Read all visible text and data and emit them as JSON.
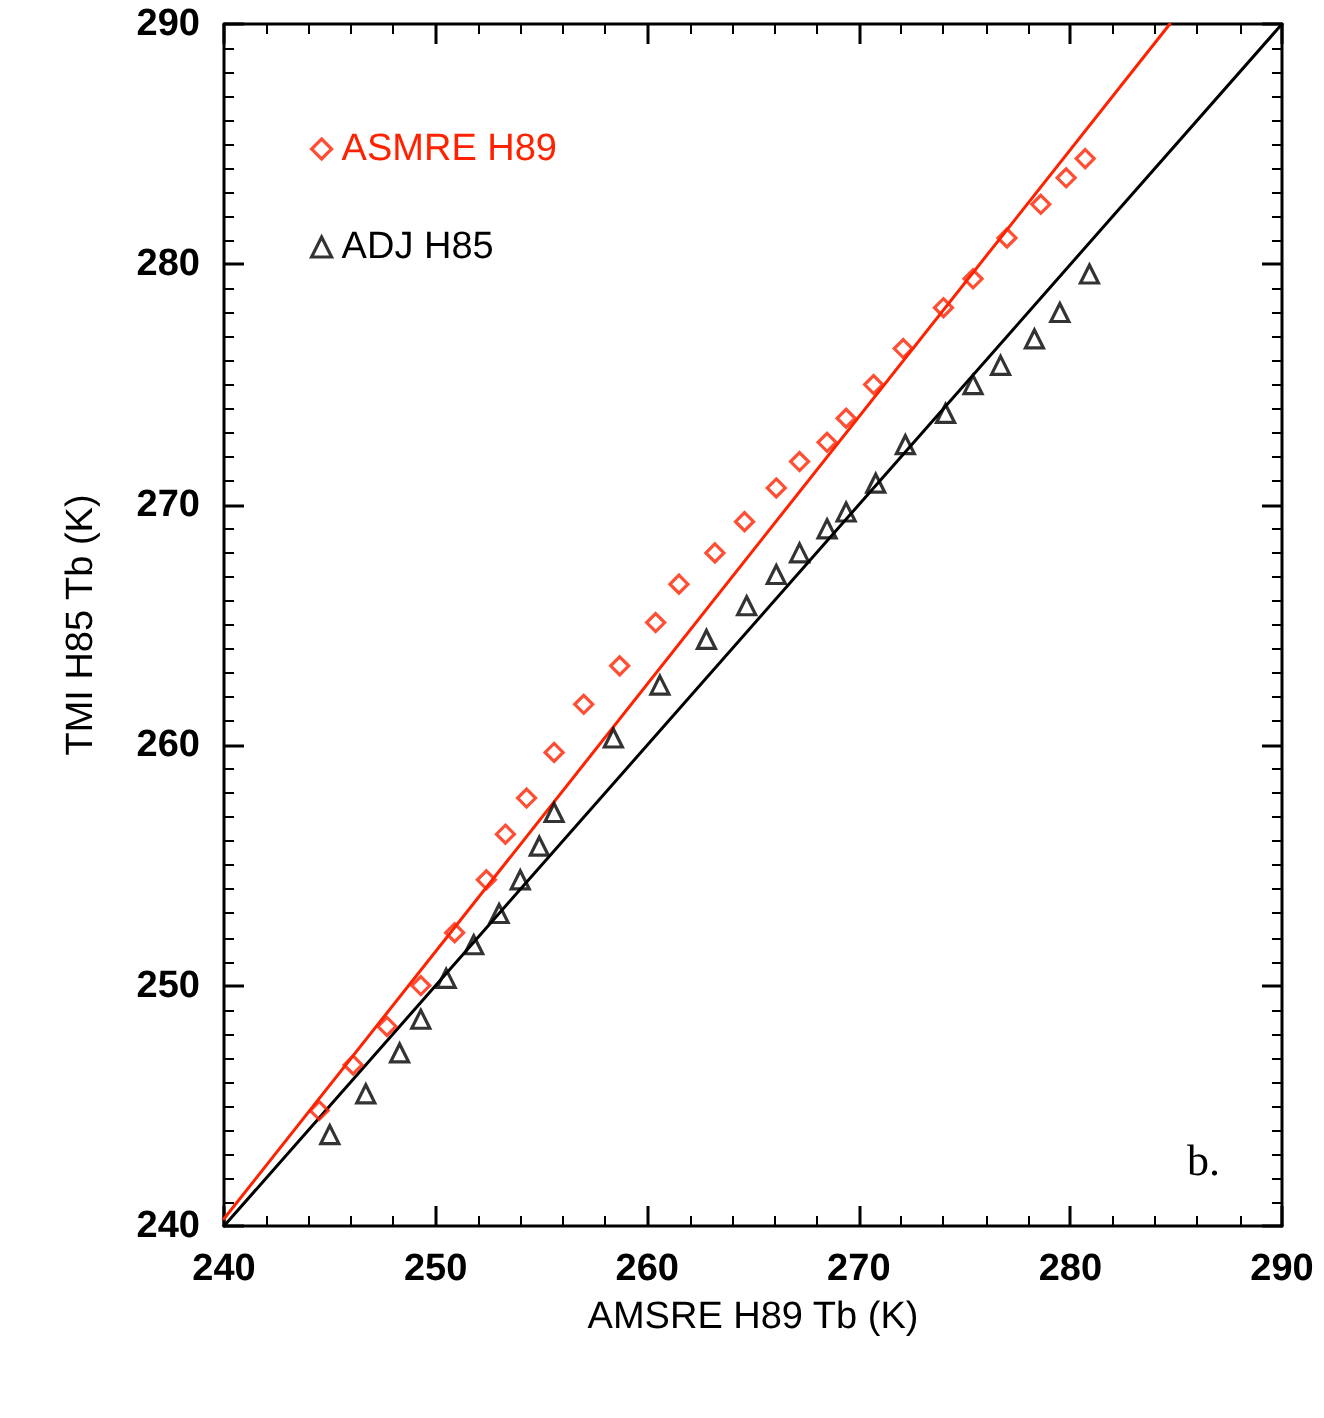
{
  "chart_data": {
    "type": "scatter",
    "xlabel": "AMSRE H89 Tb (K)",
    "ylabel": "TMI H85 Tb (K)",
    "xlim": [
      240,
      290
    ],
    "ylim": [
      240,
      290
    ],
    "xticks": [
      240,
      250,
      260,
      270,
      280,
      290
    ],
    "yticks": [
      240,
      250,
      260,
      270,
      280,
      290
    ],
    "grid": false,
    "legend": "top left",
    "annotations": [
      "b."
    ],
    "series": [
      {
        "name": "ASMRE H89",
        "color": "#ff2200",
        "marker": "diamond",
        "x": [
          244.5,
          246.1,
          247.7,
          249.3,
          250.9,
          252.4,
          253.3,
          254.3,
          255.6,
          257.0,
          258.7,
          260.4,
          261.5,
          263.2,
          264.6,
          266.1,
          267.2,
          268.5,
          269.4,
          270.7,
          272.1,
          274.0,
          275.4,
          277.0,
          278.6,
          279.8,
          280.7
        ],
        "values": [
          244.8,
          246.7,
          248.3,
          250.0,
          252.2,
          254.4,
          256.3,
          257.8,
          259.7,
          261.7,
          263.3,
          265.1,
          266.7,
          268.0,
          269.3,
          270.7,
          271.8,
          272.6,
          273.6,
          275.0,
          276.5,
          278.2,
          279.4,
          281.1,
          282.5,
          283.6,
          284.4
        ]
      },
      {
        "name": "ADJ H85",
        "color": "#000000",
        "marker": "triangle",
        "x": [
          245.0,
          246.7,
          248.3,
          249.3,
          250.5,
          251.8,
          253.0,
          254.0,
          254.9,
          255.6,
          258.4,
          260.6,
          262.8,
          264.7,
          266.1,
          267.2,
          268.5,
          269.4,
          270.8,
          272.2,
          274.1,
          275.4,
          276.7,
          278.3,
          279.5,
          280.9
        ],
        "values": [
          243.8,
          245.5,
          247.2,
          248.6,
          250.3,
          251.7,
          253.0,
          254.4,
          255.8,
          257.2,
          260.3,
          262.5,
          264.4,
          265.8,
          267.1,
          268.0,
          269.0,
          269.7,
          270.9,
          272.5,
          273.8,
          275.0,
          275.8,
          276.9,
          278.0,
          279.6
        ]
      },
      {
        "type": "line",
        "color": "#ff2200",
        "marker": "none",
        "x": [
          240,
          284.7
        ],
        "values": [
          240.3,
          290
        ]
      },
      {
        "type": "line",
        "color": "#000000",
        "marker": "none",
        "x": [
          240,
          290
        ],
        "values": [
          240,
          290
        ]
      }
    ]
  }
}
